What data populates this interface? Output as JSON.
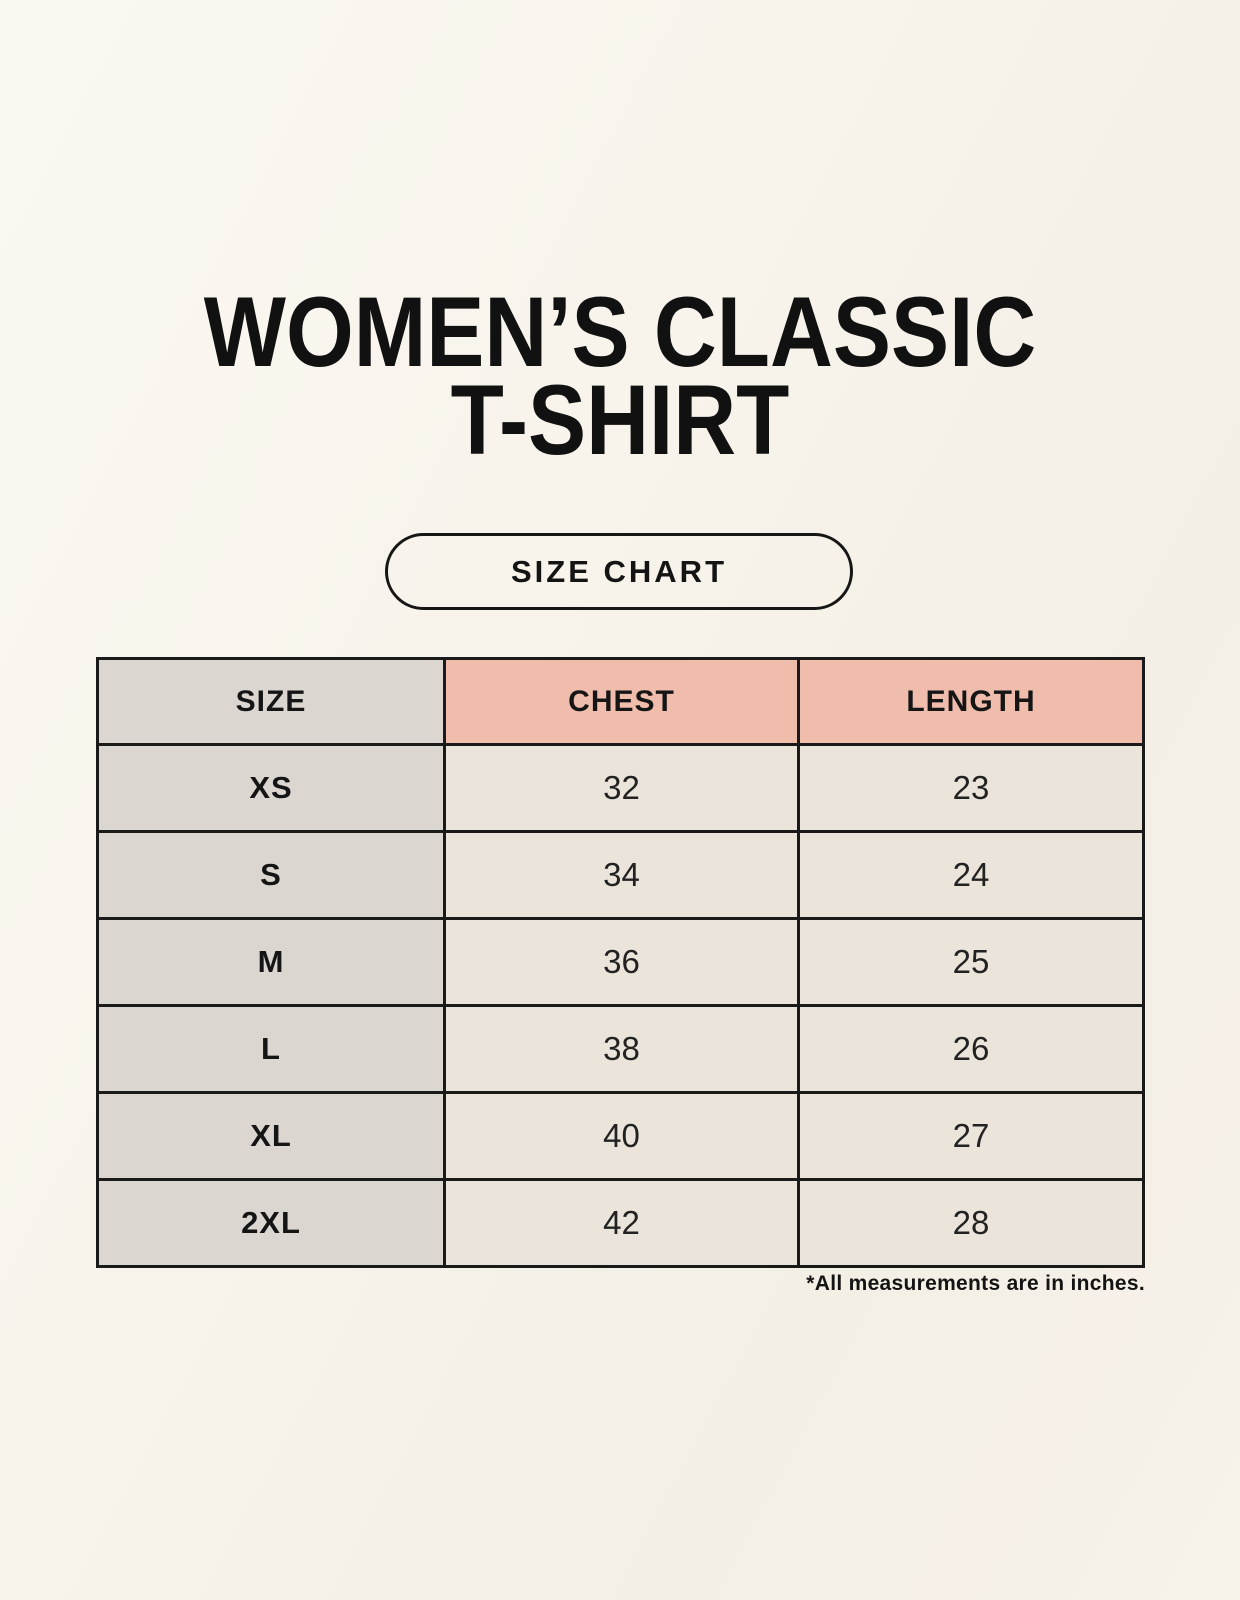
{
  "colors": {
    "page_background": "#f8f4ec",
    "table_border": "#1a1a1a",
    "size_column_background": "#dcd6d1",
    "measure_header_background": "#f0bcab",
    "value_cell_background": "#ebe4da",
    "text": "#121212"
  },
  "header": {
    "title_line1": "WOMEN’S CLASSIC",
    "title_line2": "T-SHIRT",
    "badge_label": "SIZE CHART"
  },
  "chart_data": {
    "type": "table",
    "title": "WOMEN’S CLASSIC T-SHIRT",
    "subtitle": "SIZE CHART",
    "columns": [
      "SIZE",
      "CHEST",
      "LENGTH"
    ],
    "rows": [
      {
        "size": "XS",
        "chest": "32",
        "length": "23"
      },
      {
        "size": "S",
        "chest": "34",
        "length": "24"
      },
      {
        "size": "M",
        "chest": "36",
        "length": "25"
      },
      {
        "size": "L",
        "chest": "38",
        "length": "26"
      },
      {
        "size": "XL",
        "chest": "40",
        "length": "27"
      },
      {
        "size": "2XL",
        "chest": "42",
        "length": "28"
      }
    ],
    "units": "inches",
    "footnote": "*All measurements are in inches."
  }
}
